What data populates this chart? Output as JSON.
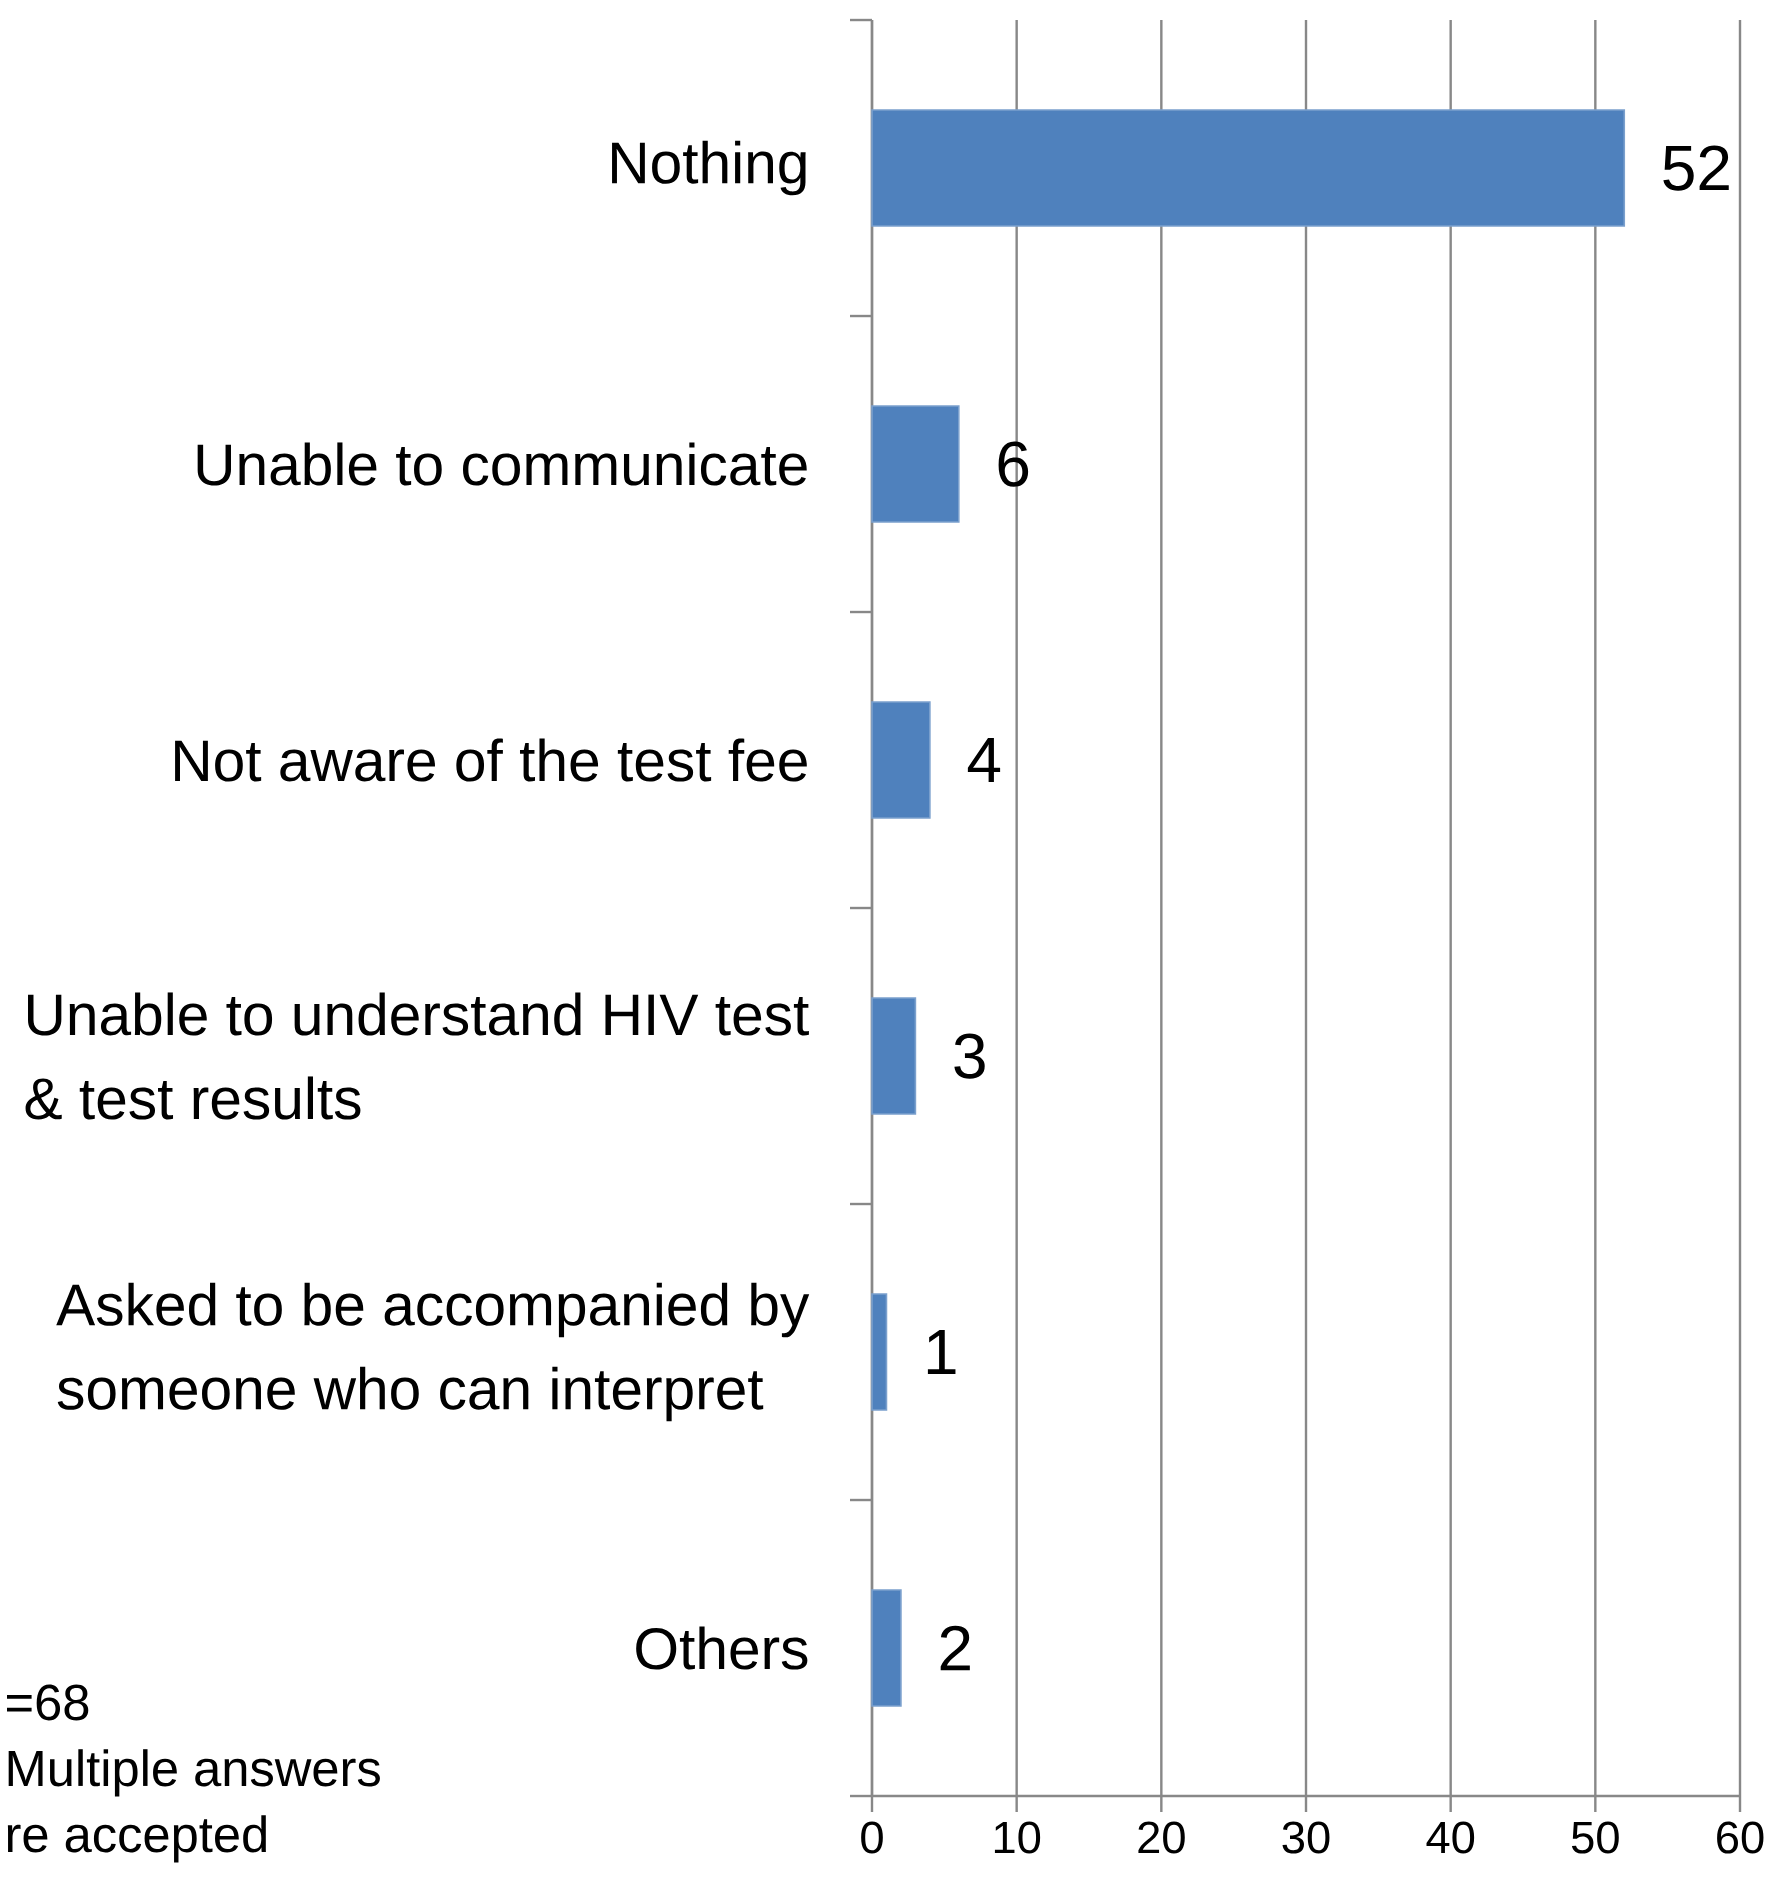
{
  "chart_data": {
    "type": "bar",
    "orientation": "horizontal",
    "categories": [
      "Nothing",
      "Unable to communicate",
      "Not aware of the test fee",
      "Unable to understand HIV test & test results",
      "Asked to be accompanied by someone who can interpret",
      "Others"
    ],
    "values": [
      52,
      6,
      4,
      3,
      1,
      2
    ],
    "color": "#4f81bd",
    "xlim": [
      0,
      60
    ],
    "xticks": [
      0,
      10,
      20,
      30,
      40,
      50,
      60
    ],
    "grid": "x",
    "data_labels": true,
    "annotations": [
      "=68",
      "Multiple answers re accepted"
    ]
  }
}
